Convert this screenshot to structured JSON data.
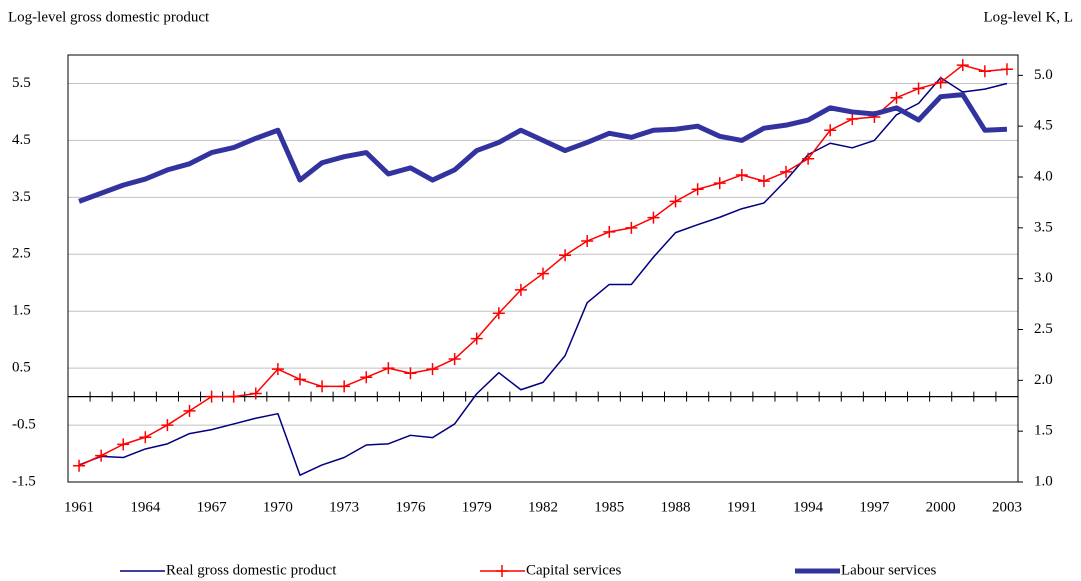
{
  "chart_data": {
    "type": "line",
    "y_label": "Log-level gross domestic product",
    "y2_label": "Log-level K, L",
    "x": [
      1961,
      1962,
      1963,
      1964,
      1965,
      1966,
      1967,
      1968,
      1969,
      1970,
      1971,
      1972,
      1973,
      1974,
      1975,
      1976,
      1977,
      1978,
      1979,
      1980,
      1981,
      1982,
      1983,
      1984,
      1985,
      1986,
      1987,
      1988,
      1989,
      1990,
      1991,
      1992,
      1993,
      1994,
      1995,
      1996,
      1997,
      1998,
      1999,
      2000,
      2001,
      2002,
      2003
    ],
    "xlim": [
      1960.5,
      2003.5
    ],
    "xticks": [
      1961,
      1964,
      1967,
      1970,
      1973,
      1976,
      1979,
      1982,
      1985,
      1988,
      1991,
      1994,
      1997,
      2000,
      2003
    ],
    "ylim": [
      -1.5,
      6.0
    ],
    "yticks": [
      -1.5,
      -0.5,
      0.5,
      1.5,
      2.5,
      3.5,
      4.5,
      5.5
    ],
    "y2lim": [
      1.0,
      5.2
    ],
    "y2ticks": [
      {
        "value": 1,
        "label": "1.0"
      },
      1.5,
      {
        "value": 2,
        "label": "2.0"
      },
      2.5,
      {
        "value": 3,
        "label": "3.0"
      },
      3.5,
      {
        "value": 4,
        "label": "4.0"
      },
      4.5,
      {
        "value": 5,
        "label": "5.0"
      }
    ],
    "grid": true,
    "legend": "bottom",
    "series": [
      {
        "name": "Real gross domestic product",
        "color": "#000080",
        "line_width": 1.5,
        "values": [
          -1.2,
          -1.05,
          -1.07,
          -0.92,
          -0.83,
          -0.65,
          -0.58,
          -0.48,
          -0.38,
          -0.3,
          -1.38,
          -1.2,
          -1.07,
          -0.85,
          -0.83,
          -0.68,
          -0.72,
          -0.48,
          0.05,
          0.42,
          0.12,
          0.25,
          0.72,
          1.65,
          1.97,
          1.97,
          2.45,
          2.88,
          3.02,
          3.15,
          3.3,
          3.4,
          3.8,
          4.25,
          4.45,
          4.37,
          4.5,
          4.95,
          5.15,
          5.6,
          5.35,
          5.4,
          5.5
        ]
      },
      {
        "name": "Capital services",
        "color": "#ff0000",
        "line_width": 1.5,
        "marker": "plus",
        "axis": "y2",
        "values": [
          1.16,
          1.26,
          1.37,
          1.44,
          1.56,
          1.7,
          1.84,
          1.84,
          1.87,
          2.11,
          2.01,
          1.94,
          1.94,
          2.03,
          2.12,
          2.07,
          2.11,
          2.21,
          2.41,
          2.66,
          2.89,
          3.05,
          3.23,
          3.37,
          3.46,
          3.5,
          3.6,
          3.76,
          3.88,
          3.94,
          4.02,
          3.96,
          4.05,
          4.18,
          4.46,
          4.57,
          4.59,
          4.78,
          4.87,
          4.93,
          5.1,
          5.04,
          5.06
        ]
      },
      {
        "name": "Labour services",
        "color": "#3333a0",
        "line_width": 5,
        "axis": "y2",
        "values": [
          3.76,
          3.84,
          3.92,
          3.98,
          4.07,
          4.13,
          4.24,
          4.29,
          4.38,
          4.46,
          3.97,
          4.14,
          4.2,
          4.24,
          4.03,
          4.09,
          3.97,
          4.07,
          4.26,
          4.34,
          4.46,
          4.36,
          4.26,
          4.34,
          4.43,
          4.39,
          4.46,
          4.47,
          4.5,
          4.4,
          4.36,
          4.48,
          4.51,
          4.56,
          4.68,
          4.64,
          4.62,
          4.68,
          4.56,
          4.79,
          4.81,
          4.46,
          4.47
        ]
      }
    ]
  }
}
